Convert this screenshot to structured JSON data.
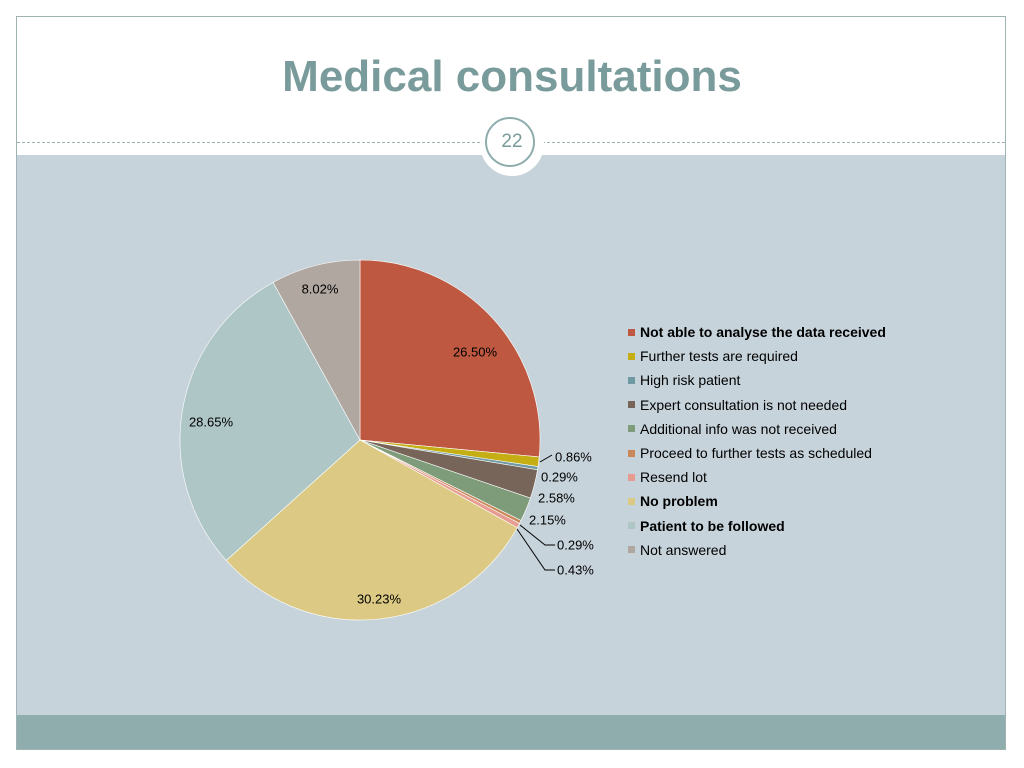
{
  "slide": {
    "title": "Medical consultations",
    "page_number": "22"
  },
  "colors": {
    "title": "#7a9b9b",
    "content_bg": "#c6d3db",
    "footer_bg": "#8fadad"
  },
  "chart_data": {
    "type": "pie",
    "title": "",
    "legend_placement": "right",
    "start_angle_deg": 0,
    "direction": "clockwise",
    "slices": [
      {
        "name": "Not able to analyse the data received",
        "value": 26.5,
        "label": "26.50%",
        "color": "#be5840",
        "bold": true
      },
      {
        "name": "Further tests are required",
        "value": 0.86,
        "label": "0.86%",
        "color": "#c4ae13",
        "bold": false
      },
      {
        "name": "High risk patient",
        "value": 0.29,
        "label": "0.29%",
        "color": "#6f9aa5",
        "bold": false
      },
      {
        "name": "Expert consultation is not needed",
        "value": 2.58,
        "label": "2.58%",
        "color": "#776559",
        "bold": false
      },
      {
        "name": "Additional info was not received",
        "value": 2.15,
        "label": "2.15%",
        "color": "#7e9c7a",
        "bold": false
      },
      {
        "name": "Proceed to further tests as scheduled",
        "value": 0.29,
        "label": "0.29%",
        "color": "#c9875a",
        "bold": false
      },
      {
        "name": "Resend lot",
        "value": 0.43,
        "label": "0.43%",
        "color": "#e79c91",
        "bold": false
      },
      {
        "name": "No problem",
        "value": 30.23,
        "label": "30.23%",
        "color": "#dcca84",
        "bold": true
      },
      {
        "name": "Patient to be followed",
        "value": 28.65,
        "label": "28.65%",
        "color": "#afc6c7",
        "bold": true
      },
      {
        "name": "Not answered",
        "value": 8.02,
        "label": "8.02%",
        "color": "#b0a7a0",
        "bold": false
      }
    ]
  }
}
